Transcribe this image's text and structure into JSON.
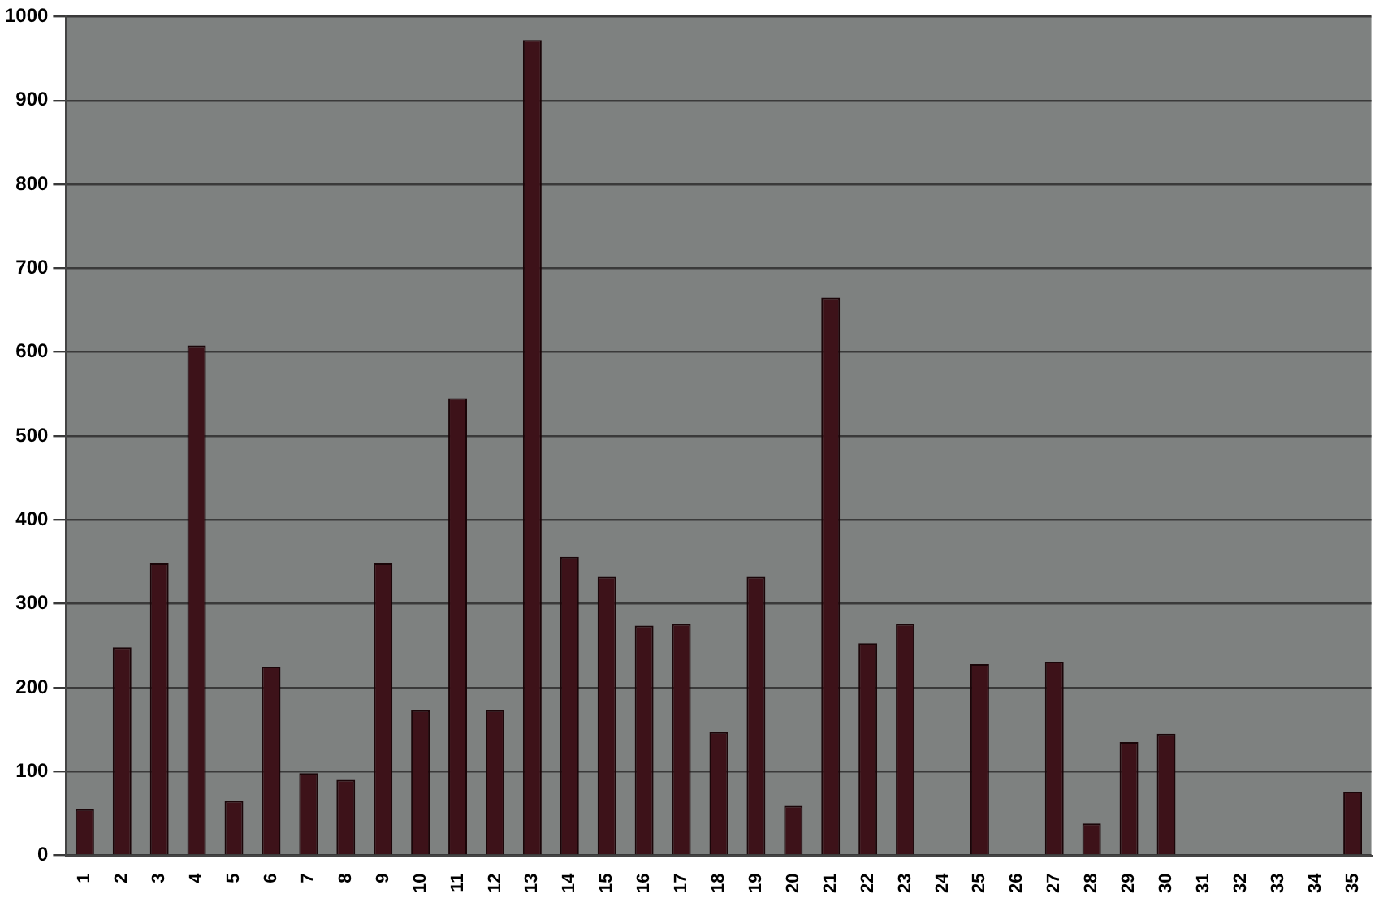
{
  "chart_data": {
    "type": "bar",
    "categories": [
      "1",
      "2",
      "3",
      "4",
      "5",
      "6",
      "7",
      "8",
      "9",
      "10",
      "11",
      "12",
      "13",
      "14",
      "15",
      "16",
      "17",
      "18",
      "19",
      "20",
      "21",
      "22",
      "23",
      "24",
      "25",
      "26",
      "27",
      "28",
      "29",
      "30",
      "31",
      "32",
      "33",
      "34",
      "35"
    ],
    "values": [
      55,
      248,
      348,
      608,
      65,
      225,
      98,
      90,
      348,
      173,
      545,
      173,
      972,
      356,
      332,
      274,
      276,
      147,
      332,
      59,
      665,
      253,
      276,
      0,
      228,
      0,
      231,
      38,
      135,
      145,
      0,
      0,
      0,
      0,
      76
    ],
    "color": "#3d1219",
    "ylim": [
      0,
      1000
    ],
    "yticks": [
      0,
      100,
      200,
      300,
      400,
      500,
      600,
      700,
      800,
      900,
      1000
    ],
    "grid": "y",
    "legend": false
  }
}
